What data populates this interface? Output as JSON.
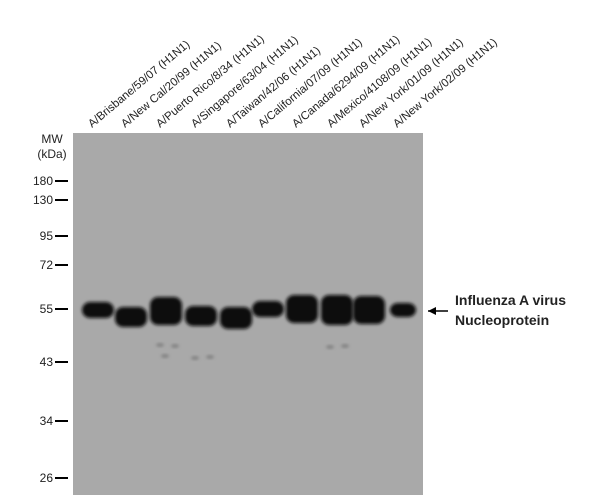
{
  "mw_label": "MW",
  "mw_unit": "(kDa)",
  "markers": [
    180,
    130,
    95,
    72,
    55,
    43,
    34,
    26
  ],
  "lanes": [
    "A/Brisbane/59/07 (H1N1)",
    "A/New Cal/20/99 (H1N1)",
    "A/Puerto Rico/8/34 (H1N1)",
    "A/Singapore/63/04 (H1N1)",
    "A/Taiwan/42/06 (H1N1)",
    "A/California/07/09 (H1N1)",
    "A/Canada/6294/09 (H1N1)",
    "A/Mexico/4108/09 (H1N1)",
    "A/New York/01/09 (H1N1)",
    "A/New York/02/09 (H1N1)"
  ],
  "annotation": [
    "Influenza A virus",
    "Nucleoprotein"
  ]
}
